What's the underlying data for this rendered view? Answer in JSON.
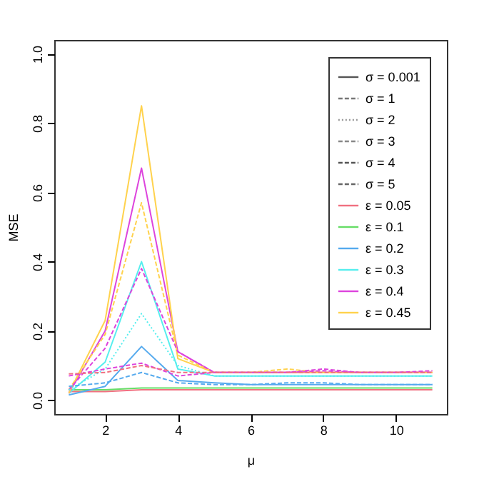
{
  "chart_data": {
    "type": "line",
    "xlabel": "μ",
    "ylabel": "MSE",
    "x": [
      1,
      2,
      3,
      4,
      5,
      6,
      7,
      8,
      9,
      10,
      11
    ],
    "xlim": [
      0.6,
      11.4
    ],
    "ylim": [
      -0.04,
      1.04
    ],
    "xticks": [
      2,
      4,
      6,
      8,
      10
    ],
    "yticks": [
      {
        "value": 0,
        "label": "0.0"
      },
      {
        "value": 0.2,
        "label": "0.2"
      },
      {
        "value": 0.4,
        "label": "0.4"
      },
      {
        "value": 0.6,
        "label": "0.6"
      },
      {
        "value": 0.8,
        "label": "0.8"
      },
      {
        "value": 1,
        "label": "1.0"
      }
    ],
    "grid": false,
    "legend": "top right",
    "marker": "none",
    "series": [
      {
        "name": "σ = 0.001",
        "color": "#555555",
        "line_style": "solid",
        "values": [
          null,
          null,
          null,
          null,
          null,
          null,
          null,
          null,
          null,
          null,
          null
        ]
      },
      {
        "name": "σ = 1",
        "color": "#777777",
        "line_style": "dashed",
        "values": [
          null,
          null,
          null,
          null,
          null,
          null,
          null,
          null,
          null,
          null,
          null
        ]
      },
      {
        "name": "σ = 2",
        "color": "#999999",
        "line_style": "dotted",
        "values": [
          null,
          null,
          null,
          null,
          null,
          null,
          null,
          null,
          null,
          null,
          null
        ]
      },
      {
        "name": "σ = 3",
        "color": "#888888",
        "line_style": "dashed",
        "values": [
          null,
          null,
          null,
          null,
          null,
          null,
          null,
          null,
          null,
          null,
          null
        ]
      },
      {
        "name": "σ = 4",
        "color": "#555555",
        "line_style": "dashed",
        "values": [
          null,
          null,
          null,
          null,
          null,
          null,
          null,
          null,
          null,
          null,
          null
        ]
      },
      {
        "name": "σ = 5",
        "color": "#666666",
        "line_style": "dashed",
        "values": [
          null,
          null,
          null,
          null,
          null,
          null,
          null,
          null,
          null,
          null,
          null
        ]
      },
      {
        "name": "ε = 0.05",
        "color": "#f07080",
        "line_style": "solid",
        "values": [
          0.025,
          0.025,
          0.03,
          0.03,
          0.03,
          0.03,
          0.03,
          0.03,
          0.03,
          0.03,
          0.03
        ]
      },
      {
        "name": "ε = 0.1",
        "color": "#66dd66",
        "line_style": "solid",
        "values": [
          0.03,
          0.03,
          0.035,
          0.035,
          0.035,
          0.035,
          0.035,
          0.035,
          0.035,
          0.035,
          0.035
        ]
      },
      {
        "name": "ε = 0.2",
        "color": "#55aaee",
        "line_style": "solid",
        "values": [
          0.015,
          0.04,
          0.155,
          0.057,
          0.05,
          0.045,
          0.045,
          0.045,
          0.045,
          0.045,
          0.045
        ]
      },
      {
        "name": "ε = 0.3",
        "color": "#55eeee",
        "line_style": "solid",
        "values": [
          0.02,
          0.11,
          0.4,
          0.09,
          0.07,
          0.07,
          0.07,
          0.07,
          0.07,
          0.07,
          0.07
        ]
      },
      {
        "name": "ε = 0.4",
        "color": "#dd44dd",
        "line_style": "solid",
        "values": [
          0.02,
          0.2,
          0.67,
          0.14,
          0.08,
          0.08,
          0.08,
          0.08,
          0.08,
          0.08,
          0.08
        ]
      },
      {
        "name": "ε = 0.45",
        "color": "#ffd24d",
        "line_style": "solid",
        "values": [
          0.02,
          0.23,
          0.85,
          0.12,
          0.08,
          0.08,
          0.08,
          0.08,
          0.08,
          0.08,
          0.08
        ]
      },
      {
        "color": "#ffd24d",
        "line_style": "dashed",
        "values": [
          0.03,
          0.19,
          0.57,
          0.13,
          0.08,
          0.08,
          0.09,
          0.08,
          0.08,
          0.08,
          0.08
        ]
      },
      {
        "color": "#dd44dd",
        "line_style": "dashed",
        "values": [
          0.03,
          0.15,
          0.38,
          0.14,
          0.08,
          0.08,
          0.08,
          0.09,
          0.08,
          0.08,
          0.08
        ]
      },
      {
        "color": "#55eeee",
        "line_style": "dotted",
        "values": [
          0.03,
          0.09,
          0.25,
          0.1,
          0.07,
          0.07,
          0.07,
          0.07,
          0.07,
          0.07,
          0.07
        ]
      },
      {
        "color": "#dd44dd",
        "line_style": "dashed",
        "values": [
          0.07,
          0.09,
          0.107,
          0.07,
          0.08,
          0.08,
          0.08,
          0.085,
          0.08,
          0.08,
          0.085
        ]
      },
      {
        "color": "#f07080",
        "line_style": "dashed",
        "values": [
          0.076,
          0.08,
          0.1,
          0.08,
          0.08,
          0.08,
          0.08,
          0.08,
          0.08,
          0.08,
          0.08
        ]
      },
      {
        "color": "#55aaee",
        "line_style": "dashed",
        "values": [
          0.04,
          0.05,
          0.08,
          0.05,
          0.045,
          0.045,
          0.05,
          0.05,
          0.045,
          0.045,
          0.045
        ]
      }
    ]
  }
}
